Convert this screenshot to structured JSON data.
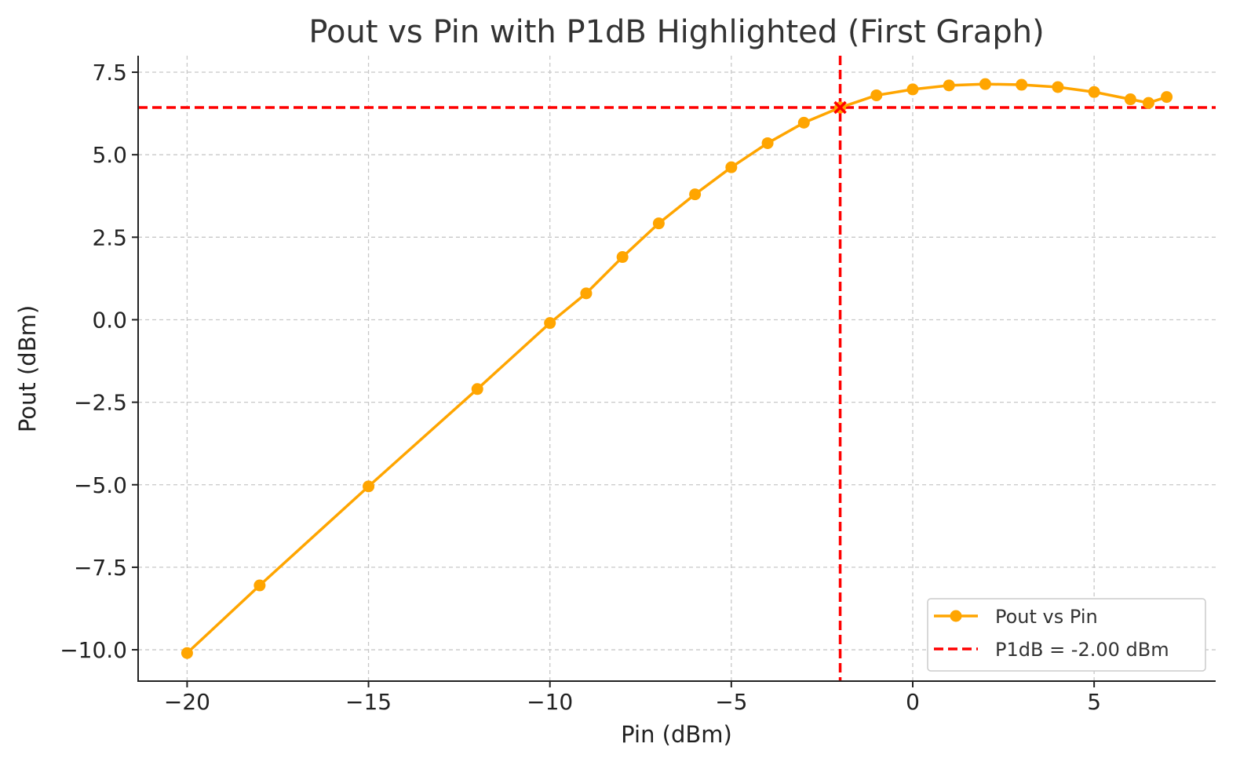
{
  "chart_data": {
    "type": "line",
    "title": "Pout vs Pin with P1dB Highlighted (First Graph)",
    "xlabel": "Pin (dBm)",
    "ylabel": "Pout (dBm)",
    "xlim": [
      -21.35,
      8.35
    ],
    "ylim": [
      -10.95,
      8.0
    ],
    "xticks": [
      -20,
      -15,
      -10,
      -5,
      0,
      5
    ],
    "xtick_labels": [
      "−20",
      "−15",
      "−10",
      "−5",
      "0",
      "5"
    ],
    "yticks": [
      -10,
      -7.5,
      -5,
      -2.5,
      0,
      2.5,
      5,
      7.5
    ],
    "ytick_labels": [
      "−10.0",
      "−7.5",
      "−5.0",
      "−2.5",
      "0.0",
      "2.5",
      "5.0",
      "7.5"
    ],
    "grid": true,
    "legend_position": "bottom-right",
    "series": [
      {
        "name": "Pout vs Pin",
        "color": "#FFA500",
        "marker": "circle",
        "x": [
          -20,
          -18,
          -15,
          -12,
          -10,
          -9,
          -8,
          -7,
          -6,
          -5,
          -4,
          -3,
          -2,
          -1,
          0,
          1,
          2,
          3,
          4,
          5,
          6,
          6.5,
          7
        ],
        "y": [
          -10.1,
          -8.05,
          -5.05,
          -2.1,
          -0.1,
          0.8,
          1.9,
          2.92,
          3.8,
          4.62,
          5.35,
          5.97,
          6.43,
          6.8,
          6.98,
          7.1,
          7.14,
          7.12,
          7.05,
          6.9,
          6.68,
          6.57,
          6.75
        ]
      }
    ],
    "annotations": {
      "p1db_point": {
        "x": -2,
        "y": 6.43,
        "marker": "x",
        "color": "#FF0000"
      },
      "p1db_vline": {
        "x": -2,
        "color": "#FF0000",
        "style": "dashed"
      },
      "p1db_hline": {
        "y": 6.43,
        "color": "#FF0000",
        "style": "dashed"
      }
    },
    "legend": [
      {
        "label": "Pout vs Pin",
        "kind": "line-marker",
        "color": "#FFA500"
      },
      {
        "label": "P1dB = -2.00 dBm",
        "kind": "dashed-line",
        "color": "#FF0000"
      }
    ]
  }
}
